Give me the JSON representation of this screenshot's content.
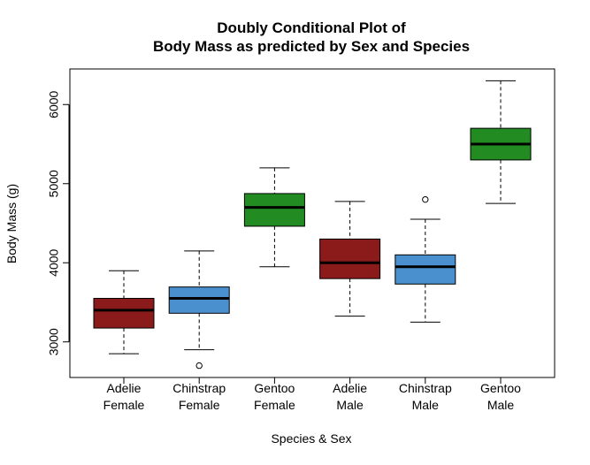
{
  "chart_data": {
    "type": "boxplot",
    "title_line1": "Doubly Conditional Plot of",
    "title_line2": "Body Mass as predicted by Sex and Species",
    "xlabel": "Species & Sex",
    "ylabel": "Body Mass (g)",
    "ylim": [
      2550,
      6450
    ],
    "yticks": [
      3000,
      4000,
      5000,
      6000
    ],
    "ytick_labels": [
      "3000",
      "4000",
      "5000",
      "6000"
    ],
    "colors": {
      "Adelie": "#8B1A1A",
      "Chinstrap": "#4A90CE",
      "Gentoo": "#228B22"
    },
    "boxes": [
      {
        "species": "Adelie",
        "sex": "Female",
        "label1": "Adelie",
        "label2": "Female",
        "min": 2850,
        "q1": 3175,
        "median": 3400,
        "q3": 3550,
        "max": 3900,
        "outliers": []
      },
      {
        "species": "Chinstrap",
        "sex": "Female",
        "label1": "Chinstrap",
        "label2": "Female",
        "min": 2900,
        "q1": 3362,
        "median": 3550,
        "q3": 3694,
        "max": 4150,
        "outliers": [
          2700
        ]
      },
      {
        "species": "Gentoo",
        "sex": "Female",
        "label1": "Gentoo",
        "label2": "Female",
        "min": 3950,
        "q1": 4462,
        "median": 4700,
        "q3": 4875,
        "max": 5200,
        "outliers": []
      },
      {
        "species": "Adelie",
        "sex": "Male",
        "label1": "Adelie",
        "label2": "Male",
        "min": 3325,
        "q1": 3800,
        "median": 4000,
        "q3": 4300,
        "max": 4775,
        "outliers": []
      },
      {
        "species": "Chinstrap",
        "sex": "Male",
        "label1": "Chinstrap",
        "label2": "Male",
        "min": 3250,
        "q1": 3731,
        "median": 3950,
        "q3": 4100,
        "max": 4550,
        "outliers": [
          4800
        ]
      },
      {
        "species": "Gentoo",
        "sex": "Male",
        "label1": "Gentoo",
        "label2": "Male",
        "min": 4750,
        "q1": 5300,
        "median": 5500,
        "q3": 5700,
        "max": 6300,
        "outliers": []
      }
    ]
  }
}
